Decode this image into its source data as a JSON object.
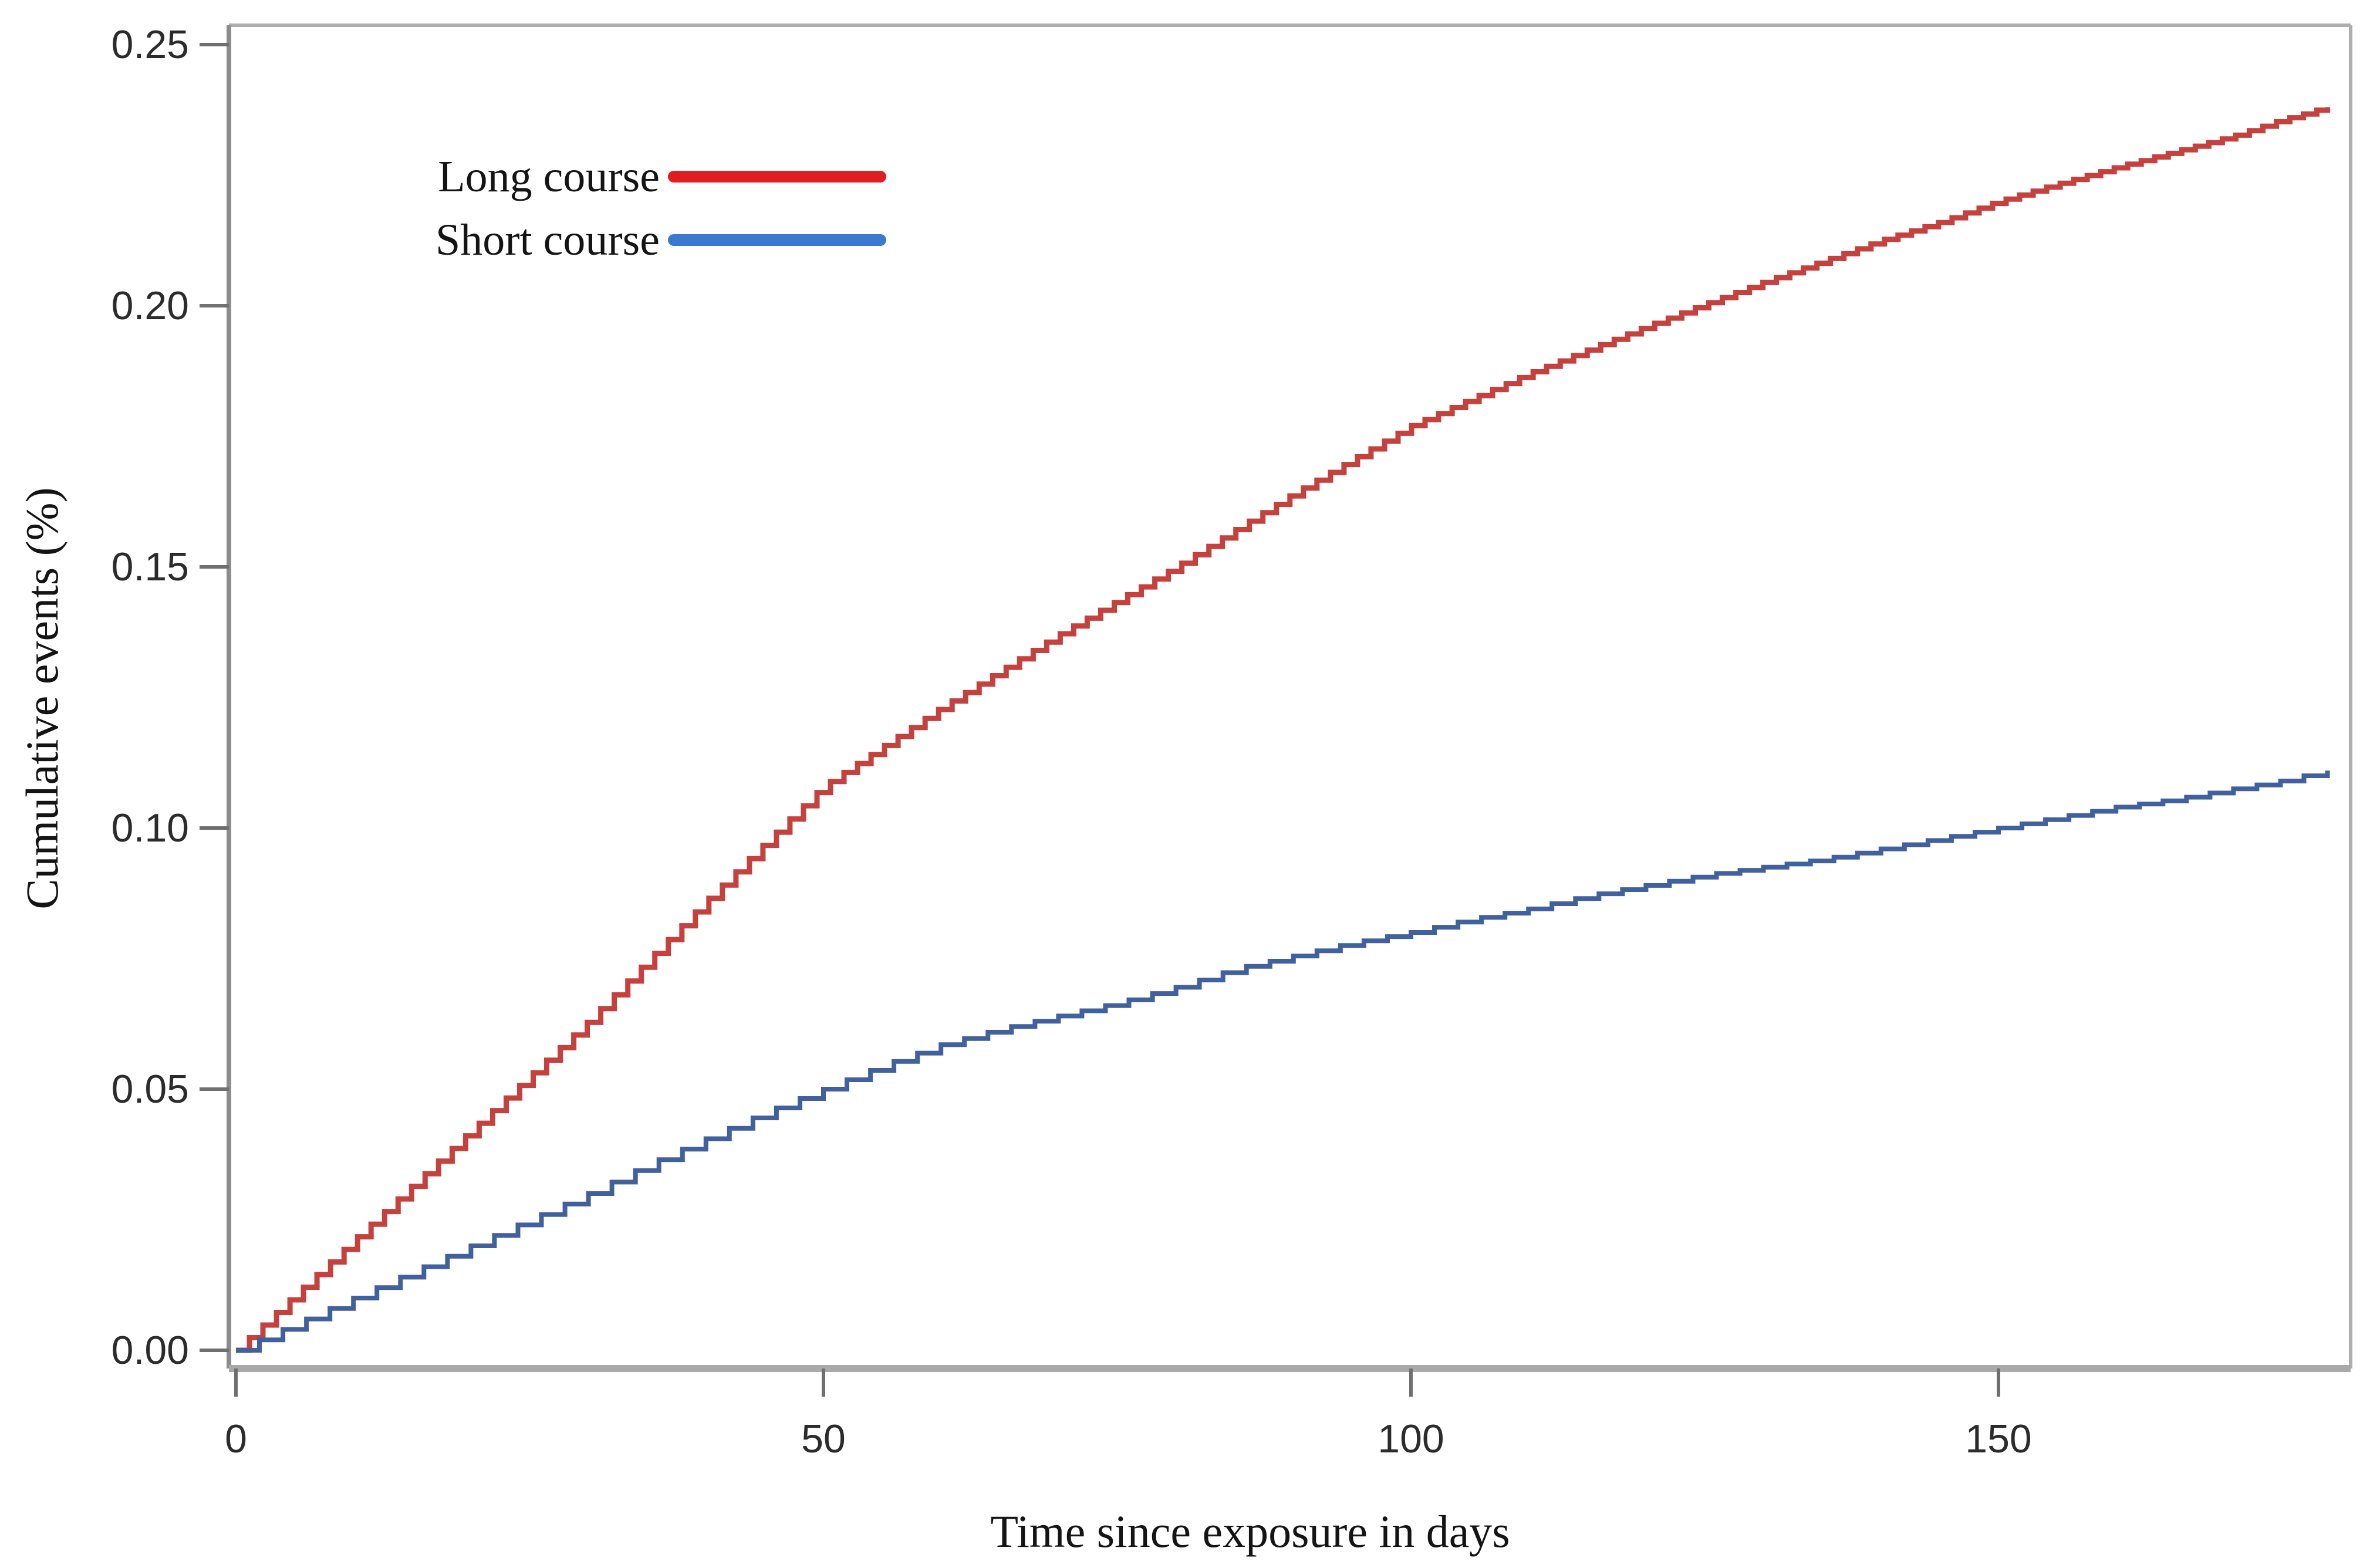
{
  "figure": {
    "background": "#ffffff",
    "frame_color": "#aeaeae",
    "axis_color": "#8c8c8c",
    "tick_color": "#6f6f6f",
    "text_color": "#141414"
  },
  "chart_data": {
    "type": "line",
    "subtype": "step-after-cumulative-incidence",
    "title": "",
    "xlabel": "Time since exposure in days",
    "ylabel": "Cumulative events (%)",
    "xlim": [
      0,
      180
    ],
    "ylim": [
      0,
      0.25
    ],
    "x_ticks": [
      {
        "value": 0,
        "label": "0"
      },
      {
        "value": 50,
        "label": "50"
      },
      {
        "value": 100,
        "label": "100"
      },
      {
        "value": 150,
        "label": "150"
      }
    ],
    "y_ticks": [
      {
        "value": 0.0,
        "label": "0.00"
      },
      {
        "value": 0.05,
        "label": "0.05"
      },
      {
        "value": 0.1,
        "label": "0.10"
      },
      {
        "value": 0.15,
        "label": "0.15"
      },
      {
        "value": 0.2,
        "label": "0.20"
      },
      {
        "value": 0.25,
        "label": "0.25"
      }
    ],
    "grid": false,
    "legend_position": "inside-top-left",
    "series": [
      {
        "name": "Long course",
        "curve_color": "#c4413d",
        "legend_color": "#e31b23",
        "points": [
          [
            0,
            0
          ],
          [
            5,
            0.0105
          ],
          [
            10,
            0.021
          ],
          [
            15,
            0.0315
          ],
          [
            20,
            0.042
          ],
          [
            25,
            0.0525
          ],
          [
            30,
            0.063
          ],
          [
            35,
            0.0745
          ],
          [
            40,
            0.086
          ],
          [
            45,
            0.097
          ],
          [
            50,
            0.108
          ],
          [
            55,
            0.1155
          ],
          [
            60,
            0.123
          ],
          [
            65,
            0.13
          ],
          [
            70,
            0.137
          ],
          [
            75,
            0.1435
          ],
          [
            80,
            0.15
          ],
          [
            85,
            0.157
          ],
          [
            90,
            0.164
          ],
          [
            95,
            0.1705
          ],
          [
            100,
            0.177
          ],
          [
            105,
            0.182
          ],
          [
            110,
            0.187
          ],
          [
            115,
            0.1915
          ],
          [
            120,
            0.196
          ],
          [
            125,
            0.2003
          ],
          [
            130,
            0.2045
          ],
          [
            135,
            0.2085
          ],
          [
            140,
            0.2125
          ],
          [
            145,
            0.216
          ],
          [
            150,
            0.22
          ],
          [
            155,
            0.2233
          ],
          [
            160,
            0.2265
          ],
          [
            165,
            0.2295
          ],
          [
            170,
            0.2325
          ],
          [
            174,
            0.2355
          ],
          [
            178,
            0.238
          ]
        ]
      },
      {
        "name": "Short course",
        "curve_color": "#41619e",
        "legend_color": "#3c78cd",
        "points": [
          [
            0,
            0
          ],
          [
            5,
            0.005
          ],
          [
            10,
            0.01
          ],
          [
            15,
            0.015
          ],
          [
            20,
            0.02
          ],
          [
            25,
            0.025
          ],
          [
            30,
            0.03
          ],
          [
            35,
            0.0355
          ],
          [
            40,
            0.0405
          ],
          [
            45,
            0.0455
          ],
          [
            50,
            0.05
          ],
          [
            55,
            0.0545
          ],
          [
            60,
            0.0585
          ],
          [
            65,
            0.0615
          ],
          [
            70,
            0.064
          ],
          [
            75,
            0.0665
          ],
          [
            80,
            0.0695
          ],
          [
            85,
            0.073
          ],
          [
            90,
            0.0755
          ],
          [
            95,
            0.078
          ],
          [
            100,
            0.08
          ],
          [
            105,
            0.0825
          ],
          [
            110,
            0.0845
          ],
          [
            115,
            0.087
          ],
          [
            120,
            0.089
          ],
          [
            125,
            0.091
          ],
          [
            130,
            0.0925
          ],
          [
            135,
            0.094
          ],
          [
            140,
            0.096
          ],
          [
            145,
            0.098
          ],
          [
            150,
            0.1
          ],
          [
            155,
            0.102
          ],
          [
            160,
            0.104
          ],
          [
            165,
            0.1055
          ],
          [
            170,
            0.1075
          ],
          [
            174,
            0.109
          ],
          [
            178,
            0.111
          ]
        ]
      }
    ]
  }
}
